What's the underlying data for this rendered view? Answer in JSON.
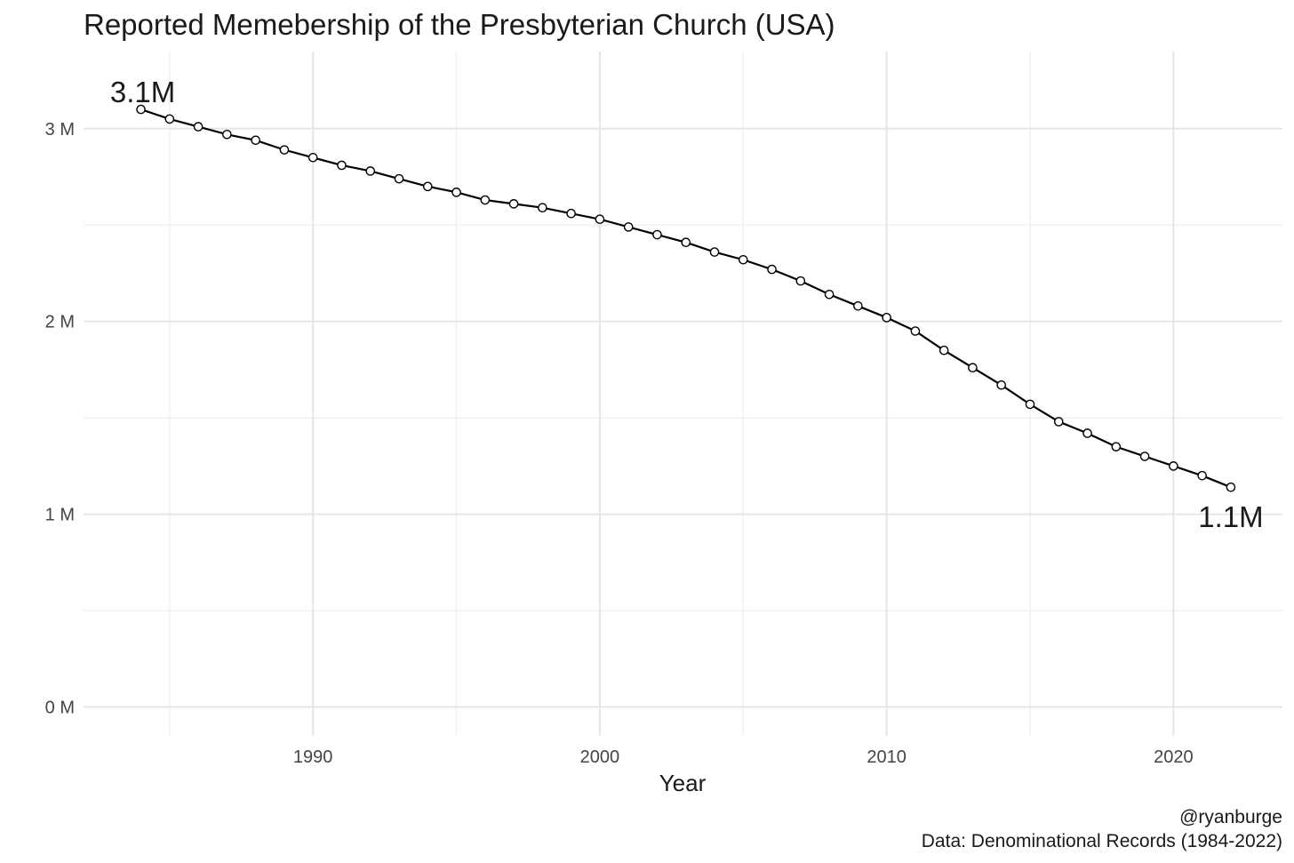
{
  "chart_data": {
    "type": "line",
    "title": "Reported Memebership of the Presbyterian Church (USA)",
    "xlabel": "Year",
    "ylabel": "",
    "x_ticks": [
      1990,
      2000,
      2010,
      2020
    ],
    "y_ticks": [
      {
        "value": 0,
        "label": "0 M"
      },
      {
        "value": 1000000,
        "label": "1 M"
      },
      {
        "value": 2000000,
        "label": "2 M"
      },
      {
        "value": 3000000,
        "label": "3 M"
      }
    ],
    "xlim": [
      1982,
      2023.8
    ],
    "ylim": [
      -150000,
      3400000
    ],
    "grid": true,
    "series": [
      {
        "x": [
          1984,
          1985,
          1986,
          1987,
          1988,
          1989,
          1990,
          1991,
          1992,
          1993,
          1994,
          1995,
          1996,
          1997,
          1998,
          1999,
          2000,
          2001,
          2002,
          2003,
          2004,
          2005,
          2006,
          2007,
          2008,
          2009,
          2010,
          2011,
          2012,
          2013,
          2014,
          2015,
          2016,
          2017,
          2018,
          2019,
          2020,
          2021,
          2022
        ],
        "values": [
          3100000,
          3050000,
          3010000,
          2970000,
          2940000,
          2890000,
          2850000,
          2810000,
          2780000,
          2740000,
          2700000,
          2670000,
          2630000,
          2610000,
          2590000,
          2560000,
          2530000,
          2490000,
          2450000,
          2410000,
          2360000,
          2320000,
          2270000,
          2210000,
          2140000,
          2080000,
          2020000,
          1950000,
          1850000,
          1760000,
          1670000,
          1570000,
          1480000,
          1420000,
          1350000,
          1300000,
          1250000,
          1200000,
          1140000
        ]
      }
    ],
    "annotations": [
      {
        "text": "3.1M",
        "x": 1984,
        "y": 3100000
      },
      {
        "text": "1.1M",
        "x": 2022,
        "y": 1140000
      }
    ],
    "caption_lines": [
      "@ryanburge",
      "Data: Denominational Records (1984-2022)"
    ]
  }
}
